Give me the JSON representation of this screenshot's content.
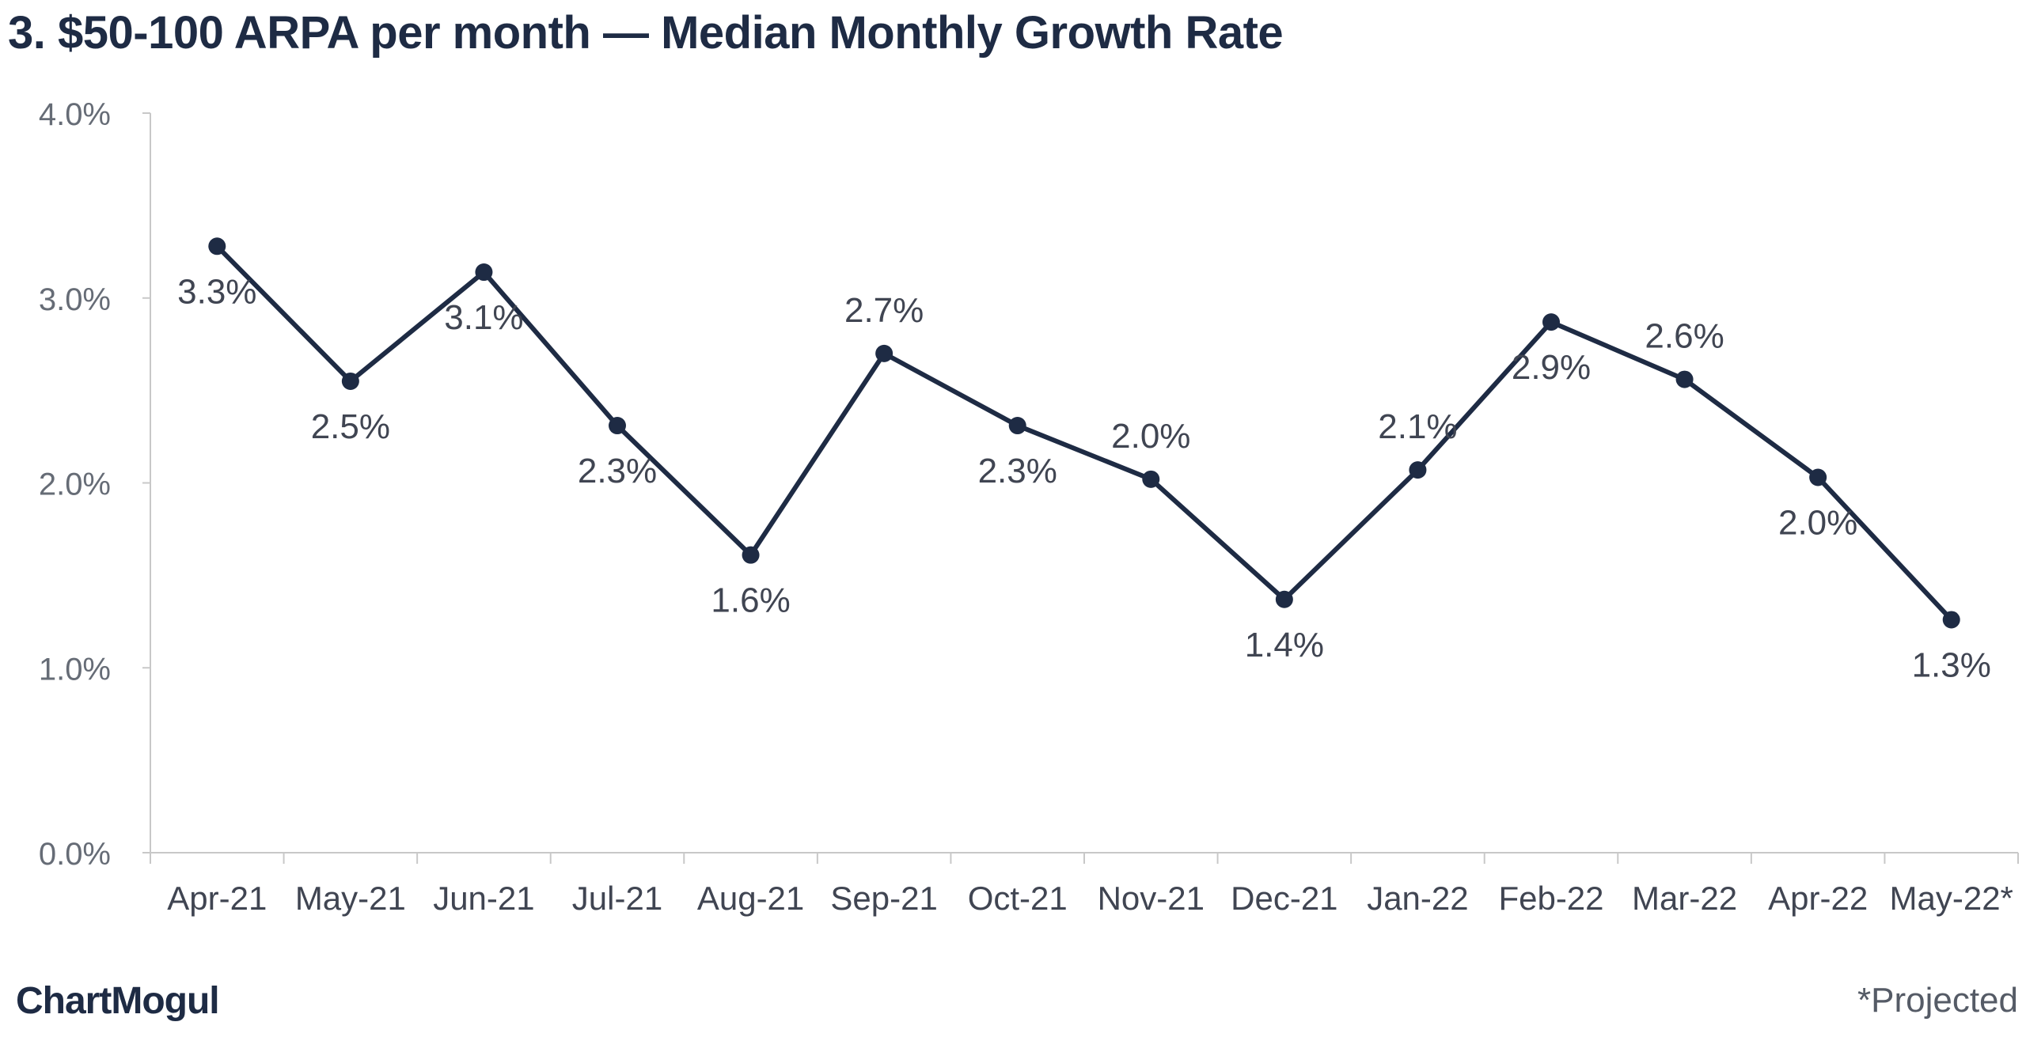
{
  "chart_data": {
    "type": "line",
    "title": "3. $50-100 ARPA per month — Median Monthly Growth Rate",
    "xlabel": "",
    "ylabel": "",
    "categories": [
      "Apr-21",
      "May-21",
      "Jun-21",
      "Jul-21",
      "Aug-21",
      "Sep-21",
      "Oct-21",
      "Nov-21",
      "Dec-21",
      "Jan-22",
      "Feb-22",
      "Mar-22",
      "Apr-22",
      "May-22*"
    ],
    "series": [
      {
        "values": [
          3.28,
          2.55,
          3.14,
          2.31,
          1.61,
          2.7,
          2.31,
          2.02,
          1.37,
          2.07,
          2.87,
          2.56,
          2.03,
          1.26
        ],
        "data_labels": [
          "3.3%",
          "2.5%",
          "3.1%",
          "2.3%",
          "1.6%",
          "2.7%",
          "2.3%",
          "2.0%",
          "1.4%",
          "2.1%",
          "2.9%",
          "2.6%",
          "2.0%",
          "1.3%"
        ],
        "label_positions": [
          "below",
          "below",
          "below",
          "below",
          "below",
          "above",
          "below",
          "above",
          "below",
          "above",
          "below",
          "above",
          "below",
          "below"
        ]
      }
    ],
    "ylim": [
      0,
      4
    ],
    "yticks": [
      "0.0%",
      "1.0%",
      "2.0%",
      "3.0%",
      "4.0%"
    ],
    "grid": false,
    "legend": "none",
    "colors": {
      "line": "#1e2b44",
      "axis": "#c8c8c8",
      "tick_text": "#666c76",
      "label_text": "#404552"
    }
  },
  "brand": {
    "logo_text": "ChartMogul"
  },
  "footnote": "*Projected"
}
